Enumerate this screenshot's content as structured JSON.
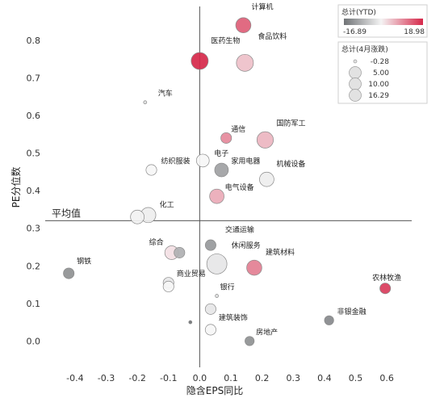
{
  "chart_data": {
    "type": "scatter",
    "xlabel": "隐含EPS同比",
    "ylabel": "PE分位数",
    "xlim": [
      -0.48,
      0.68
    ],
    "ylim": [
      -0.07,
      0.89
    ],
    "xticks": [
      -0.4,
      -0.3,
      -0.2,
      -0.1,
      0.0,
      0.1,
      0.2,
      0.3,
      0.4,
      0.5,
      0.6
    ],
    "xtick_labels": [
      "-0.4",
      "-0.3",
      "-0.2",
      "-0.1",
      "0.0",
      "0.1",
      "0.2",
      "0.3",
      "0.4",
      "0.5",
      "0.6"
    ],
    "yticks": [
      0.0,
      0.1,
      0.2,
      0.3,
      0.4,
      0.5,
      0.6,
      0.7,
      0.8
    ],
    "ytick_labels": [
      "0.0",
      "0.1",
      "0.2",
      "0.3",
      "0.4",
      "0.5",
      "0.6",
      "0.7",
      "0.8"
    ],
    "reference_lines": {
      "vertical_x": 0.0,
      "horizontal_y": 0.32,
      "horizontal_label": "平均值"
    },
    "color_legend": {
      "title": "总计(YTD)",
      "min_label": "-16.89",
      "max_label": "18.98",
      "min": -16.89,
      "max": 18.98
    },
    "size_legend": {
      "title": "总计(4月涨跌)",
      "entries": [
        {
          "label": "-0.28",
          "value": -0.28
        },
        {
          "label": "5.00",
          "value": 5.0
        },
        {
          "label": "10.00",
          "value": 10.0
        },
        {
          "label": "16.29",
          "value": 16.29
        }
      ]
    },
    "points": [
      {
        "name": "计算机",
        "x": 0.14,
        "y": 0.84,
        "ytd": 14,
        "apr": 7
      },
      {
        "name": "医药生物",
        "x": 0.0,
        "y": 0.745,
        "ytd": 18.98,
        "apr": 10
      },
      {
        "name": "食品饮料",
        "x": 0.145,
        "y": 0.74,
        "ytd": 5,
        "apr": 10
      },
      {
        "name": "汽车",
        "x": -0.175,
        "y": 0.635,
        "ytd": -3,
        "apr": -0.2
      },
      {
        "name": "通信",
        "x": 0.085,
        "y": 0.54,
        "ytd": 10,
        "apr": 2
      },
      {
        "name": "国防军工",
        "x": 0.21,
        "y": 0.535,
        "ytd": 6,
        "apr": 9
      },
      {
        "name": "电子",
        "x": 0.01,
        "y": 0.48,
        "ytd": 0,
        "apr": 4
      },
      {
        "name": "纺织服装",
        "x": -0.155,
        "y": 0.455,
        "ytd": 0,
        "apr": 2
      },
      {
        "name": "家用电器",
        "x": 0.07,
        "y": 0.455,
        "ytd": -11,
        "apr": 5
      },
      {
        "name": "机械设备",
        "x": 0.215,
        "y": 0.43,
        "ytd": -1,
        "apr": 6
      },
      {
        "name": "电气设备",
        "x": 0.055,
        "y": 0.385,
        "ytd": 7,
        "apr": 6
      },
      {
        "name": "化工",
        "x": -0.165,
        "y": 0.335,
        "ytd": -1,
        "apr": 7
      },
      {
        "name": "",
        "x": -0.2,
        "y": 0.33,
        "ytd": -0.5,
        "apr": 5
      },
      {
        "name": "综合",
        "x": -0.09,
        "y": 0.235,
        "ytd": 2,
        "apr": 5
      },
      {
        "name": "",
        "x": -0.065,
        "y": 0.235,
        "ytd": -9,
        "apr": 2
      },
      {
        "name": "交通运输",
        "x": 0.035,
        "y": 0.255,
        "ytd": -12,
        "apr": 2
      },
      {
        "name": "休闲服务",
        "x": 0.055,
        "y": 0.205,
        "ytd": -2,
        "apr": 16.29
      },
      {
        "name": "建筑材料",
        "x": 0.175,
        "y": 0.195,
        "ytd": 11,
        "apr": 7
      },
      {
        "name": "钢铁",
        "x": -0.42,
        "y": 0.18,
        "ytd": -13,
        "apr": 2
      },
      {
        "name": "商业贸易",
        "x": -0.1,
        "y": 0.155,
        "ytd": -2,
        "apr": 2
      },
      {
        "name": "",
        "x": -0.1,
        "y": 0.145,
        "ytd": 0,
        "apr": 2
      },
      {
        "name": "银行",
        "x": 0.055,
        "y": 0.12,
        "ytd": -3,
        "apr": -0.28
      },
      {
        "name": "农林牧渔",
        "x": 0.595,
        "y": 0.14,
        "ytd": 17,
        "apr": 2
      },
      {
        "name": "",
        "x": 0.035,
        "y": 0.085,
        "ytd": -2,
        "apr": 2
      },
      {
        "name": "非银金融",
        "x": 0.415,
        "y": 0.055,
        "ytd": -14,
        "apr": 1
      },
      {
        "name": "",
        "x": -0.03,
        "y": 0.05,
        "ytd": -16.89,
        "apr": 0
      },
      {
        "name": "建筑装饰",
        "x": 0.035,
        "y": 0.03,
        "ytd": 0,
        "apr": 2
      },
      {
        "name": "房地产",
        "x": 0.16,
        "y": 0.0,
        "ytd": -13,
        "apr": 1
      }
    ]
  }
}
